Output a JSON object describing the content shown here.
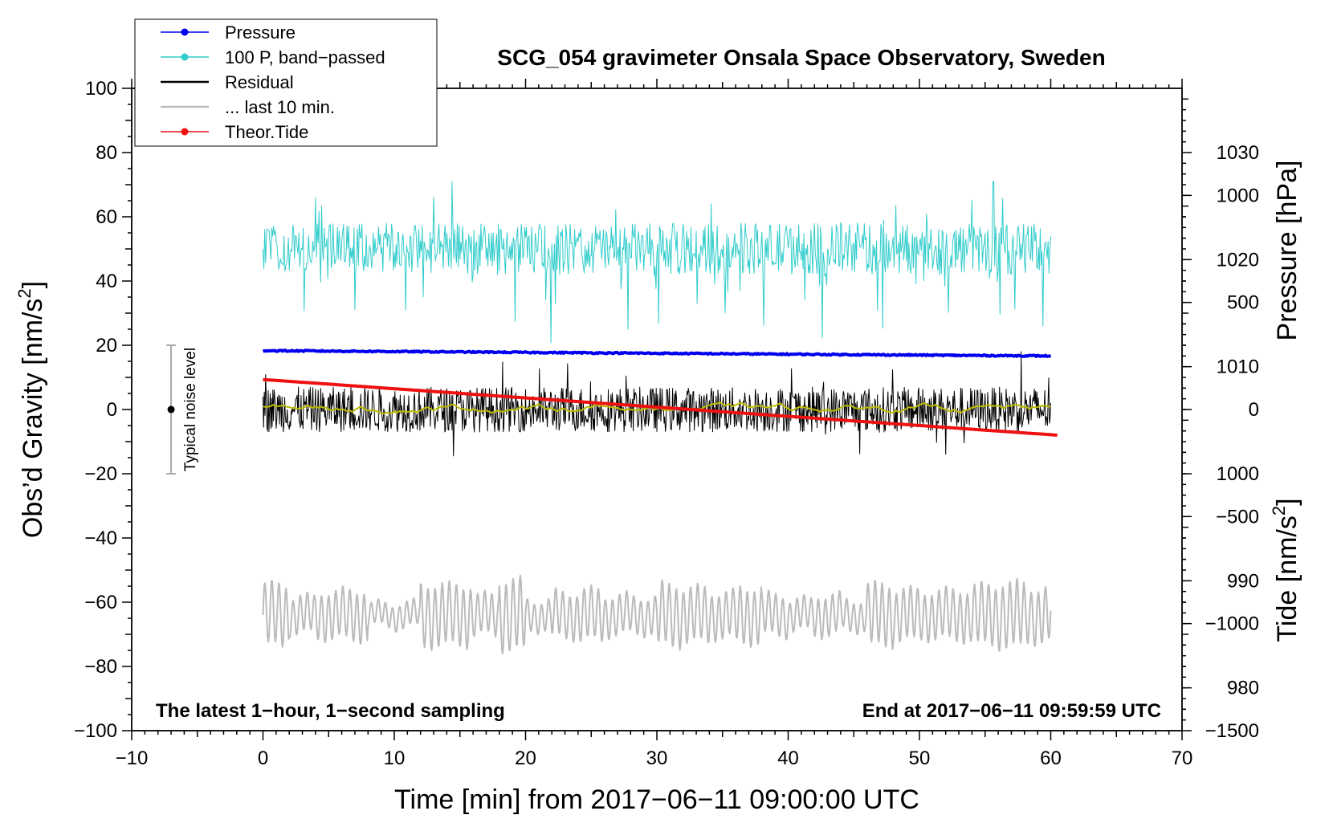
{
  "chart_data": {
    "type": "line",
    "title": "SCG_054 gravimeter Onsala Space Observatory, Sweden",
    "xlabel": "Time [min] from 2017−06−11 09:00:00 UTC",
    "ylabel_left": "Obs’d Gravity [nm/s",
    "ylabel_left_sup": "2",
    "ylabel_left_close": "]",
    "ylabel_pressure": "Pressure [hPa]",
    "ylabel_tide": "Tide [nm/s",
    "ylabel_tide_sup": "2",
    "ylabel_tide_close": "]",
    "xlim": [
      -10,
      70
    ],
    "ylim": [
      -100,
      100
    ],
    "pressure_axis_range": [
      976,
      1036
    ],
    "tide_axis_range": [
      -1500,
      1500
    ],
    "x_ticks": [
      -10,
      0,
      10,
      20,
      30,
      40,
      50,
      60,
      70
    ],
    "x_tick_labels": [
      "−10",
      "0",
      "10",
      "20",
      "30",
      "40",
      "50",
      "60",
      "70"
    ],
    "y_ticks": [
      -100,
      -80,
      -60,
      -40,
      -20,
      0,
      20,
      40,
      60,
      80,
      100
    ],
    "y_tick_labels": [
      "−100",
      "−80",
      "−60",
      "−40",
      "−20",
      "0",
      "20",
      "40",
      "60",
      "80",
      "100"
    ],
    "pressure_ticks": [
      980,
      990,
      1000,
      1010,
      1020,
      1030
    ],
    "pressure_tick_labels": [
      "980",
      "990",
      "1000",
      "1010",
      "1020",
      "1030"
    ],
    "tide_ticks": [
      -1500,
      -1000,
      -500,
      0,
      500,
      1000
    ],
    "tide_tick_labels": [
      "−1500",
      "−1000",
      "−500",
      "0",
      "500",
      "1000"
    ],
    "grid": false,
    "legend_position": "top-left",
    "legend": [
      {
        "label": "Pressure",
        "color": "#0000ee",
        "marker": true
      },
      {
        "label": "100 P, band−passed",
        "color": "#33cccc",
        "marker": true
      },
      {
        "label": "Residual",
        "color": "#000000",
        "marker": false
      },
      {
        "label": "... last 10 min.",
        "color": "#bbbbbb",
        "marker": false
      },
      {
        "label": "Theor.Tide",
        "color": "#ee1111",
        "marker": true
      }
    ],
    "series": [
      {
        "name": "Pressure",
        "axis": "pressure",
        "unit": "hPa",
        "color": "#0000ee",
        "x_range": [
          0,
          60
        ],
        "start": 1011.5,
        "end": 1011.0
      },
      {
        "name": "100 P, band−passed",
        "axis": "gravity",
        "color": "#33cccc",
        "x_range": [
          0,
          60
        ],
        "center": 50,
        "min": 20,
        "max": 71
      },
      {
        "name": "Residual",
        "axis": "gravity",
        "color": "#000000",
        "x_range": [
          0,
          60
        ],
        "center": 0,
        "min": -20,
        "max": 18
      },
      {
        "name": "... last 10 min.",
        "axis": "gravity",
        "color": "#bbbbbb",
        "x_range": [
          0,
          60
        ],
        "center": -64,
        "min": -76,
        "max": -47
      },
      {
        "name": "Residual smoothed",
        "axis": "gravity",
        "color": "#bbbb00",
        "x_range": [
          0,
          60
        ],
        "center": 0.5,
        "min": -2,
        "max": 2.5
      },
      {
        "name": "Theor.Tide",
        "axis": "tide",
        "unit": "nm/s2",
        "color": "#ee1111",
        "x_range": [
          0,
          60.5
        ],
        "start": 140,
        "end": -120
      }
    ],
    "noise_indicator": {
      "label": "Typical noise level",
      "x": -7,
      "y": 0,
      "y_range": [
        -20,
        20
      ]
    },
    "annotations": {
      "bottom_left": "The latest 1−hour, 1−second sampling",
      "bottom_right": "End at 2017−06−11 09:59:59 UTC"
    },
    "colors": {
      "smoothed": "#bbbb00",
      "noise_bar": "#aaaaaa"
    }
  }
}
